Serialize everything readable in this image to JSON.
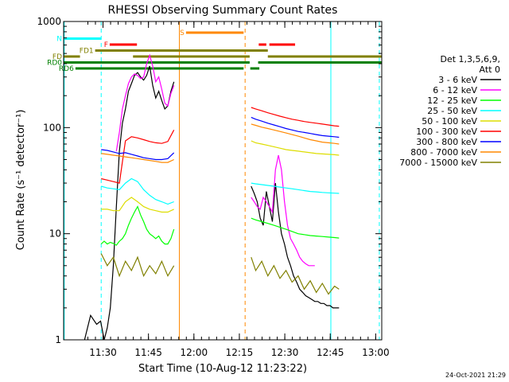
{
  "chart_data": {
    "type": "line",
    "title": "RHESSI Observing Summary Count Rates",
    "xlabel": "Start Time (10-Aug-12 11:23:22)",
    "ylabel": "Count Rate (s⁻¹ detector⁻¹)",
    "yscale": "log",
    "ylim": [
      1,
      1000
    ],
    "xlim_minutes": [
      -6.4,
      98.6
    ],
    "x_units": "minutes after 11:23:22",
    "x_ticks": [
      {
        "label": "11:30",
        "x": 6.6
      },
      {
        "label": "11:45",
        "x": 21.6
      },
      {
        "label": "12:00",
        "x": 36.6
      },
      {
        "label": "12:15",
        "x": 51.6
      },
      {
        "label": "12:30",
        "x": 66.6
      },
      {
        "label": "12:45",
        "x": 81.6
      },
      {
        "label": "13:00",
        "x": 96.6
      }
    ],
    "y_ticks": [
      {
        "label": "1",
        "y": 1
      },
      {
        "label": "10",
        "y": 10
      },
      {
        "label": "100",
        "y": 100
      },
      {
        "label": "1000",
        "y": 1000
      }
    ],
    "grid": false,
    "legend_header": [
      "Det 1,3,5,6,9,",
      "Att 0"
    ],
    "legend_position": "right",
    "footer_date": "24-Oct-2021 21:29",
    "series": [
      {
        "name": "3 - 6 keV",
        "color": "#000000",
        "segments": [
          {
            "x": [
              0.5,
              2.5,
              4.5,
              5.8,
              7,
              8,
              9,
              10,
              11,
              12,
              13,
              14,
              15,
              16,
              17,
              18,
              19,
              20,
              21,
              22,
              23,
              24,
              25,
              26,
              27,
              28,
              29,
              30
            ],
            "y": [
              1,
              1.7,
              1.4,
              1.5,
              1,
              1.3,
              2,
              5,
              18,
              60,
              110,
              150,
              220,
              260,
              310,
              330,
              300,
              280,
              310,
              380,
              250,
              190,
              220,
              180,
              150,
              160,
              220,
              270
            ]
          },
          {
            "x": [
              55.5,
              56.5,
              57.5,
              58.5,
              59.5,
              60.5,
              61.5,
              62.5,
              63.5,
              64.5,
              65.5,
              66.5,
              67.5,
              68.5,
              69.5,
              70.5,
              71.5,
              72.5,
              73.5,
              74.5,
              75.5,
              76.5,
              77.5,
              78.5,
              79.5,
              80.5,
              81.5,
              82.5,
              83.5,
              84.5
            ],
            "y": [
              28,
              24,
              20,
              14,
              12,
              25,
              18,
              13,
              30,
              16,
              10,
              8,
              6,
              5,
              4,
              3.5,
              3,
              2.8,
              2.6,
              2.5,
              2.4,
              2.3,
              2.3,
              2.2,
              2.2,
              2.1,
              2.1,
              2,
              2,
              2
            ]
          }
        ]
      },
      {
        "name": "6 - 12 keV",
        "color": "#ff00ff",
        "segments": [
          {
            "x": [
              11,
              12,
              13,
              14,
              15,
              16,
              17,
              18,
              19,
              20,
              21,
              22,
              23,
              24,
              25,
              26,
              27,
              28,
              29,
              30
            ],
            "y": [
              60,
              90,
              150,
              200,
              260,
              300,
              320,
              310,
              290,
              300,
              400,
              480,
              380,
              270,
              300,
              230,
              170,
              160,
              210,
              250
            ]
          },
          {
            "x": [
              55.5,
              56.5,
              57.5,
              58.5,
              59.5,
              60.5,
              61.5,
              62.5,
              63.5,
              64.5,
              65.5,
              66.5,
              67.5,
              68.5,
              69.5,
              70.5,
              71.5,
              72.5,
              73.5,
              74.5,
              75.5,
              76.5
            ],
            "y": [
              22,
              20,
              18,
              17,
              22,
              20,
              18,
              16,
              40,
              55,
              40,
              20,
              12,
              9,
              8,
              7,
              6,
              5.5,
              5.2,
              5,
              5,
              5
            ]
          }
        ]
      },
      {
        "name": "12 - 25 keV",
        "color": "#00ff00",
        "segments": [
          {
            "x": [
              6,
              7,
              8,
              9,
              10,
              11,
              12,
              13,
              14,
              15,
              16,
              17,
              18,
              19,
              20,
              21,
              22,
              23,
              24,
              25,
              26,
              27,
              28,
              29,
              30
            ],
            "y": [
              8,
              8.5,
              8,
              8.3,
              8.1,
              7.8,
              8.5,
              9,
              10,
              12,
              14,
              16,
              18,
              15,
              13,
              11,
              10,
              9.5,
              9,
              9.5,
              8.5,
              8,
              8,
              9,
              11
            ]
          },
          {
            "x": [
              55.5,
              57,
              59,
              61,
              63,
              65,
              67,
              69,
              71,
              73,
              75,
              77,
              79,
              81,
              83,
              84.5
            ],
            "y": [
              14,
              13.5,
              13,
              12.5,
              12,
              11.5,
              11,
              10.5,
              10,
              9.8,
              9.6,
              9.5,
              9.4,
              9.3,
              9.2,
              9.1
            ]
          }
        ]
      },
      {
        "name": "25 - 50 keV",
        "color": "#00ffff",
        "segments": [
          {
            "x": [
              6,
              8,
              10,
              12,
              14,
              16,
              18,
              20,
              22,
              24,
              26,
              28,
              30
            ],
            "y": [
              28,
              27,
              26.5,
              26,
              30,
              33,
              31,
              26,
              23,
              21,
              20,
              19,
              20
            ]
          },
          {
            "x": [
              55.5,
              57,
              59,
              61,
              63,
              65,
              67,
              69,
              71,
              73,
              75,
              77,
              79,
              81,
              83,
              84.5
            ],
            "y": [
              30,
              29.5,
              29,
              28.5,
              28,
              27.5,
              27,
              26.5,
              26,
              25.5,
              25,
              24.8,
              24.5,
              24.3,
              24.1,
              24
            ]
          }
        ]
      },
      {
        "name": "50 - 100 keV",
        "color": "#dddd00",
        "segments": [
          {
            "x": [
              6,
              8,
              10,
              12,
              14,
              16,
              18,
              20,
              22,
              24,
              26,
              28,
              30
            ],
            "y": [
              17,
              17,
              16.5,
              16.5,
              20,
              22,
              20,
              18,
              17,
              16.5,
              16,
              16,
              17
            ]
          },
          {
            "x": [
              55.5,
              57,
              59,
              61,
              63,
              65,
              67,
              69,
              71,
              73,
              75,
              77,
              79,
              81,
              83,
              84.5
            ],
            "y": [
              75,
              72,
              70,
              68,
              66,
              64,
              62,
              61,
              60,
              59,
              58,
              57,
              56.5,
              56,
              55.5,
              55
            ]
          }
        ]
      },
      {
        "name": "100 - 300 keV",
        "color": "#ff0000",
        "segments": [
          {
            "x": [
              6,
              8,
              10,
              12,
              14,
              16,
              18,
              20,
              22,
              24,
              26,
              28,
              30
            ],
            "y": [
              33,
              32,
              31,
              30,
              75,
              82,
              80,
              77,
              74,
              72,
              71,
              74,
              95
            ]
          },
          {
            "x": [
              55.5,
              57,
              59,
              61,
              63,
              65,
              67,
              69,
              71,
              73,
              75,
              77,
              79,
              81,
              83,
              84.5
            ],
            "y": [
              155,
              150,
              144,
              138,
              133,
              128,
              124,
              120,
              117,
              114,
              112,
              110,
              108,
              106,
              104,
              103
            ]
          }
        ]
      },
      {
        "name": "300 - 800 keV",
        "color": "#0000ff",
        "segments": [
          {
            "x": [
              6,
              8,
              10,
              12,
              14,
              16,
              18,
              20,
              22,
              24,
              26,
              28,
              30
            ],
            "y": [
              62,
              61,
              59,
              57,
              58,
              56,
              54,
              52,
              51,
              50,
              50,
              51,
              58
            ]
          },
          {
            "x": [
              55.5,
              57,
              59,
              61,
              63,
              65,
              67,
              69,
              71,
              73,
              75,
              77,
              79,
              81,
              83,
              84.5
            ],
            "y": [
              125,
              120,
              115,
              110,
              106,
              102,
              98,
              95,
              92,
              90,
              88,
              86,
              84,
              83,
              82,
              81
            ]
          }
        ]
      },
      {
        "name": "800 - 7000 keV",
        "color": "#ff8800",
        "segments": [
          {
            "x": [
              6,
              8,
              10,
              12,
              14,
              16,
              18,
              20,
              22,
              24,
              26,
              28,
              30
            ],
            "y": [
              57,
              56,
              55,
              54,
              53,
              52,
              51,
              50,
              49,
              48,
              47,
              47,
              50
            ]
          },
          {
            "x": [
              55.5,
              57,
              59,
              61,
              63,
              65,
              67,
              69,
              71,
              73,
              75,
              77,
              79,
              81,
              83,
              84.5
            ],
            "y": [
              108,
              105,
              101,
              98,
              95,
              92,
              89,
              86,
              83,
              80,
              77,
              75,
              73,
              72,
              71,
              70
            ]
          }
        ]
      },
      {
        "name": "7000 - 15000 keV",
        "color": "#808000",
        "segments": [
          {
            "x": [
              6,
              8,
              10,
              12,
              14,
              16,
              18,
              20,
              22,
              24,
              26,
              28,
              30
            ],
            "y": [
              6.5,
              5,
              6,
              4,
              5.5,
              4.5,
              6,
              4,
              5,
              4.2,
              5.5,
              4,
              5
            ]
          },
          {
            "x": [
              55.5,
              57,
              59,
              61,
              63,
              65,
              67,
              69,
              71,
              73,
              75,
              77,
              79,
              81,
              83,
              84.5
            ],
            "y": [
              6,
              4.5,
              5.5,
              4,
              5,
              3.8,
              4.5,
              3.5,
              4,
              3,
              3.6,
              2.8,
              3.4,
              2.7,
              3.2,
              3
            ]
          }
        ]
      }
    ],
    "flags": [
      {
        "label": "N",
        "color": "#00ffff",
        "label_color": "#00ffff",
        "level": 1,
        "segments": [
          [
            -6.4,
            6
          ]
        ]
      },
      {
        "label": "S",
        "color": "#ff8800",
        "label_color": "#ff8800",
        "level": 0,
        "segments": [
          [
            34,
            53
          ]
        ]
      },
      {
        "label": "F",
        "color": "#ff0000",
        "label_color": "#ff0000",
        "level": 2,
        "segments": [
          [
            8.8,
            17.8
          ],
          [
            58,
            60.5
          ],
          [
            61.5,
            70
          ]
        ]
      },
      {
        "label": "FD1",
        "color": "#808000",
        "label_color": "#808000",
        "level": 3,
        "segments": [
          [
            4,
            61
          ]
        ]
      },
      {
        "label": "FD",
        "color": "#808000",
        "label_color": "#808000",
        "level": 4,
        "segments": [
          [
            -6.4,
            -1
          ],
          [
            16.5,
            55
          ],
          [
            61,
            98.6
          ]
        ]
      },
      {
        "label": "RD0",
        "color": "#008000",
        "label_color": "#008000",
        "level": 5,
        "segments": [
          [
            -6.4,
            55
          ],
          [
            57.8,
            98.6
          ]
        ]
      },
      {
        "label": "RD6",
        "color": "#008000",
        "label_color": "#008000",
        "level": 6,
        "segments": [
          [
            -2.5,
            53
          ],
          [
            55.2,
            58.2
          ]
        ]
      }
    ],
    "vertical_markers": [
      {
        "x": -6.2,
        "color": "#00ffff",
        "style": "solid"
      },
      {
        "x": 6,
        "color": "#00ffff",
        "style": "dashed"
      },
      {
        "x": 31.8,
        "color": "#ff8800",
        "style": "solid"
      },
      {
        "x": 53.5,
        "color": "#ff8800",
        "style": "dashed"
      },
      {
        "x": 81.8,
        "color": "#00ffff",
        "style": "solid"
      },
      {
        "x": 97.8,
        "color": "#00ffff",
        "style": "dashed"
      }
    ]
  }
}
